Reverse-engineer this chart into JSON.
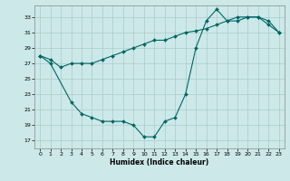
{
  "xlabel": "Humidex (Indice chaleur)",
  "xlim": [
    -0.5,
    23.5
  ],
  "ylim": [
    16,
    34.5
  ],
  "yticks": [
    17,
    19,
    21,
    23,
    25,
    27,
    29,
    31,
    33
  ],
  "xticks": [
    0,
    1,
    2,
    3,
    4,
    5,
    6,
    7,
    8,
    9,
    10,
    11,
    12,
    13,
    14,
    15,
    16,
    17,
    18,
    19,
    20,
    21,
    22,
    23
  ],
  "background_color": "#cce8e8",
  "line_color": "#006666",
  "grid_color": "#aacccc",
  "line1_x": [
    0,
    1,
    3,
    4,
    5,
    6,
    7,
    8,
    9,
    10,
    11,
    12,
    13,
    14,
    15,
    16,
    17,
    18,
    19,
    20,
    21,
    22,
    23
  ],
  "line1_y": [
    28,
    27,
    22,
    20.5,
    20,
    19.5,
    19.5,
    19.5,
    19,
    17.5,
    17.5,
    19.5,
    20,
    23,
    29,
    32.5,
    34,
    32.5,
    33,
    33,
    33,
    32,
    31
  ],
  "line2_x": [
    0,
    1,
    2,
    3,
    4,
    5,
    6,
    7,
    8,
    9,
    10,
    11,
    12,
    13,
    14,
    15,
    16,
    17,
    18,
    19,
    20,
    21,
    22,
    23
  ],
  "line2_y": [
    28,
    27.5,
    26.5,
    27,
    27,
    27,
    27.5,
    28,
    28.5,
    29,
    29.5,
    30,
    30,
    30.5,
    31,
    31.2,
    31.5,
    32,
    32.5,
    32.5,
    33,
    33,
    32.5,
    31
  ]
}
